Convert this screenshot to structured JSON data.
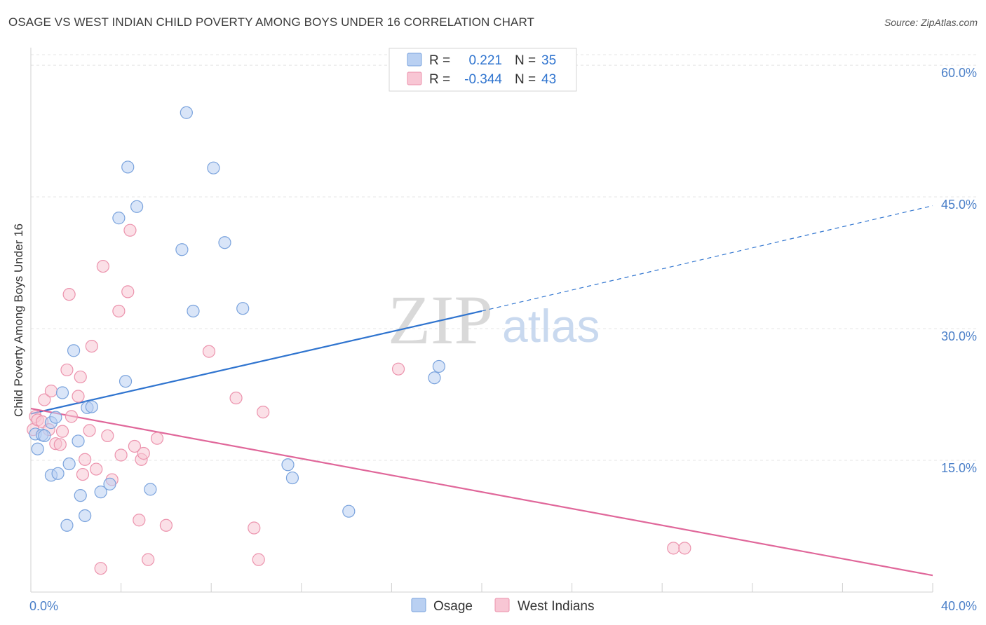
{
  "title": "OSAGE VS WEST INDIAN CHILD POVERTY AMONG BOYS UNDER 16 CORRELATION CHART",
  "source": "Source: ZipAtlas.com",
  "watermark": {
    "part1": "ZIP",
    "part2": "atlas"
  },
  "legend_top": {
    "rows": [
      {
        "r_label": "R =",
        "r_value": "0.221",
        "n_label": "N =",
        "n_value": "35"
      },
      {
        "r_label": "R =",
        "r_value": "-0.344",
        "n_label": "N =",
        "n_value": "43"
      }
    ]
  },
  "legend_bottom": {
    "items": [
      "Osage",
      "West Indians"
    ]
  },
  "colors": {
    "osage_fill": "#b9d0f2",
    "osage_stroke": "#7aa3dd",
    "osage_line": "#2f74cf",
    "wi_fill": "#f8c6d4",
    "wi_stroke": "#ec93ad",
    "wi_line": "#e0679a",
    "axis_text": "#4a7fc8",
    "grid": "#e4e4e4"
  },
  "chart_data": {
    "type": "scatter",
    "title": "OSAGE VS WEST INDIAN CHILD POVERTY AMONG BOYS UNDER 16 CORRELATION CHART",
    "xlabel": "",
    "ylabel": "Child Poverty Among Boys Under 16",
    "xlim": [
      0,
      40
    ],
    "ylim": [
      0,
      62
    ],
    "x_tick_labels": [
      {
        "value": 0,
        "label": "0.0%"
      },
      {
        "value": 40,
        "label": "40.0%"
      }
    ],
    "x_minor_ticks": [
      0,
      4,
      8,
      12,
      16,
      20,
      24,
      28,
      32,
      36,
      40
    ],
    "y_ticks": [
      {
        "value": 15,
        "label": "15.0%"
      },
      {
        "value": 30,
        "label": "30.0%"
      },
      {
        "value": 45,
        "label": "45.0%"
      },
      {
        "value": 60,
        "label": "60.0%"
      }
    ],
    "series": [
      {
        "name": "Osage",
        "r": 0.221,
        "n": 35,
        "trend": {
          "x0": 0,
          "y0": 20.3,
          "x1": 20,
          "y1": 32.0,
          "dash_to_x": 40,
          "dash_to_y": 44.0
        },
        "points": [
          [
            0.2,
            18.0
          ],
          [
            0.3,
            16.3
          ],
          [
            0.5,
            17.9
          ],
          [
            0.6,
            17.8
          ],
          [
            0.9,
            13.3
          ],
          [
            0.9,
            19.3
          ],
          [
            1.1,
            19.9
          ],
          [
            1.2,
            13.5
          ],
          [
            1.4,
            22.7
          ],
          [
            1.6,
            7.6
          ],
          [
            1.7,
            14.6
          ],
          [
            1.9,
            27.5
          ],
          [
            2.1,
            17.2
          ],
          [
            2.2,
            11.0
          ],
          [
            2.4,
            8.7
          ],
          [
            2.5,
            21.0
          ],
          [
            2.7,
            21.1
          ],
          [
            3.1,
            11.4
          ],
          [
            3.5,
            12.3
          ],
          [
            3.9,
            42.6
          ],
          [
            4.2,
            24.0
          ],
          [
            4.3,
            48.4
          ],
          [
            4.7,
            43.9
          ],
          [
            5.3,
            11.7
          ],
          [
            6.7,
            39.0
          ],
          [
            6.9,
            54.6
          ],
          [
            7.2,
            32.0
          ],
          [
            8.1,
            48.3
          ],
          [
            8.6,
            39.8
          ],
          [
            9.4,
            32.3
          ],
          [
            11.4,
            14.5
          ],
          [
            11.6,
            13.0
          ],
          [
            14.1,
            9.2
          ],
          [
            17.9,
            24.4
          ],
          [
            18.1,
            25.7
          ]
        ]
      },
      {
        "name": "West Indians",
        "r": -0.344,
        "n": 43,
        "trend": {
          "x0": 0,
          "y0": 20.9,
          "x1": 40,
          "y1": 1.9
        },
        "points": [
          [
            0.1,
            18.5
          ],
          [
            0.2,
            20.0
          ],
          [
            0.3,
            19.6
          ],
          [
            0.5,
            19.4
          ],
          [
            0.6,
            21.9
          ],
          [
            0.8,
            18.5
          ],
          [
            0.9,
            22.9
          ],
          [
            1.1,
            16.9
          ],
          [
            1.3,
            16.8
          ],
          [
            1.4,
            18.3
          ],
          [
            1.6,
            25.3
          ],
          [
            1.7,
            33.9
          ],
          [
            1.8,
            20.0
          ],
          [
            2.1,
            22.3
          ],
          [
            2.2,
            24.5
          ],
          [
            2.3,
            13.4
          ],
          [
            2.4,
            15.1
          ],
          [
            2.6,
            18.4
          ],
          [
            2.7,
            28.0
          ],
          [
            2.9,
            14.0
          ],
          [
            3.1,
            2.7
          ],
          [
            3.2,
            37.1
          ],
          [
            3.4,
            17.8
          ],
          [
            3.6,
            12.8
          ],
          [
            3.9,
            32.0
          ],
          [
            4.0,
            15.6
          ],
          [
            4.3,
            34.2
          ],
          [
            4.4,
            41.2
          ],
          [
            4.6,
            16.6
          ],
          [
            4.8,
            8.2
          ],
          [
            4.9,
            15.1
          ],
          [
            5.0,
            15.8
          ],
          [
            5.2,
            3.7
          ],
          [
            5.6,
            17.5
          ],
          [
            6.0,
            7.6
          ],
          [
            7.9,
            27.4
          ],
          [
            9.1,
            22.1
          ],
          [
            9.9,
            7.3
          ],
          [
            10.1,
            3.7
          ],
          [
            10.3,
            20.5
          ],
          [
            16.3,
            25.4
          ],
          [
            28.5,
            5.0
          ],
          [
            29.0,
            5.0
          ]
        ]
      }
    ]
  }
}
